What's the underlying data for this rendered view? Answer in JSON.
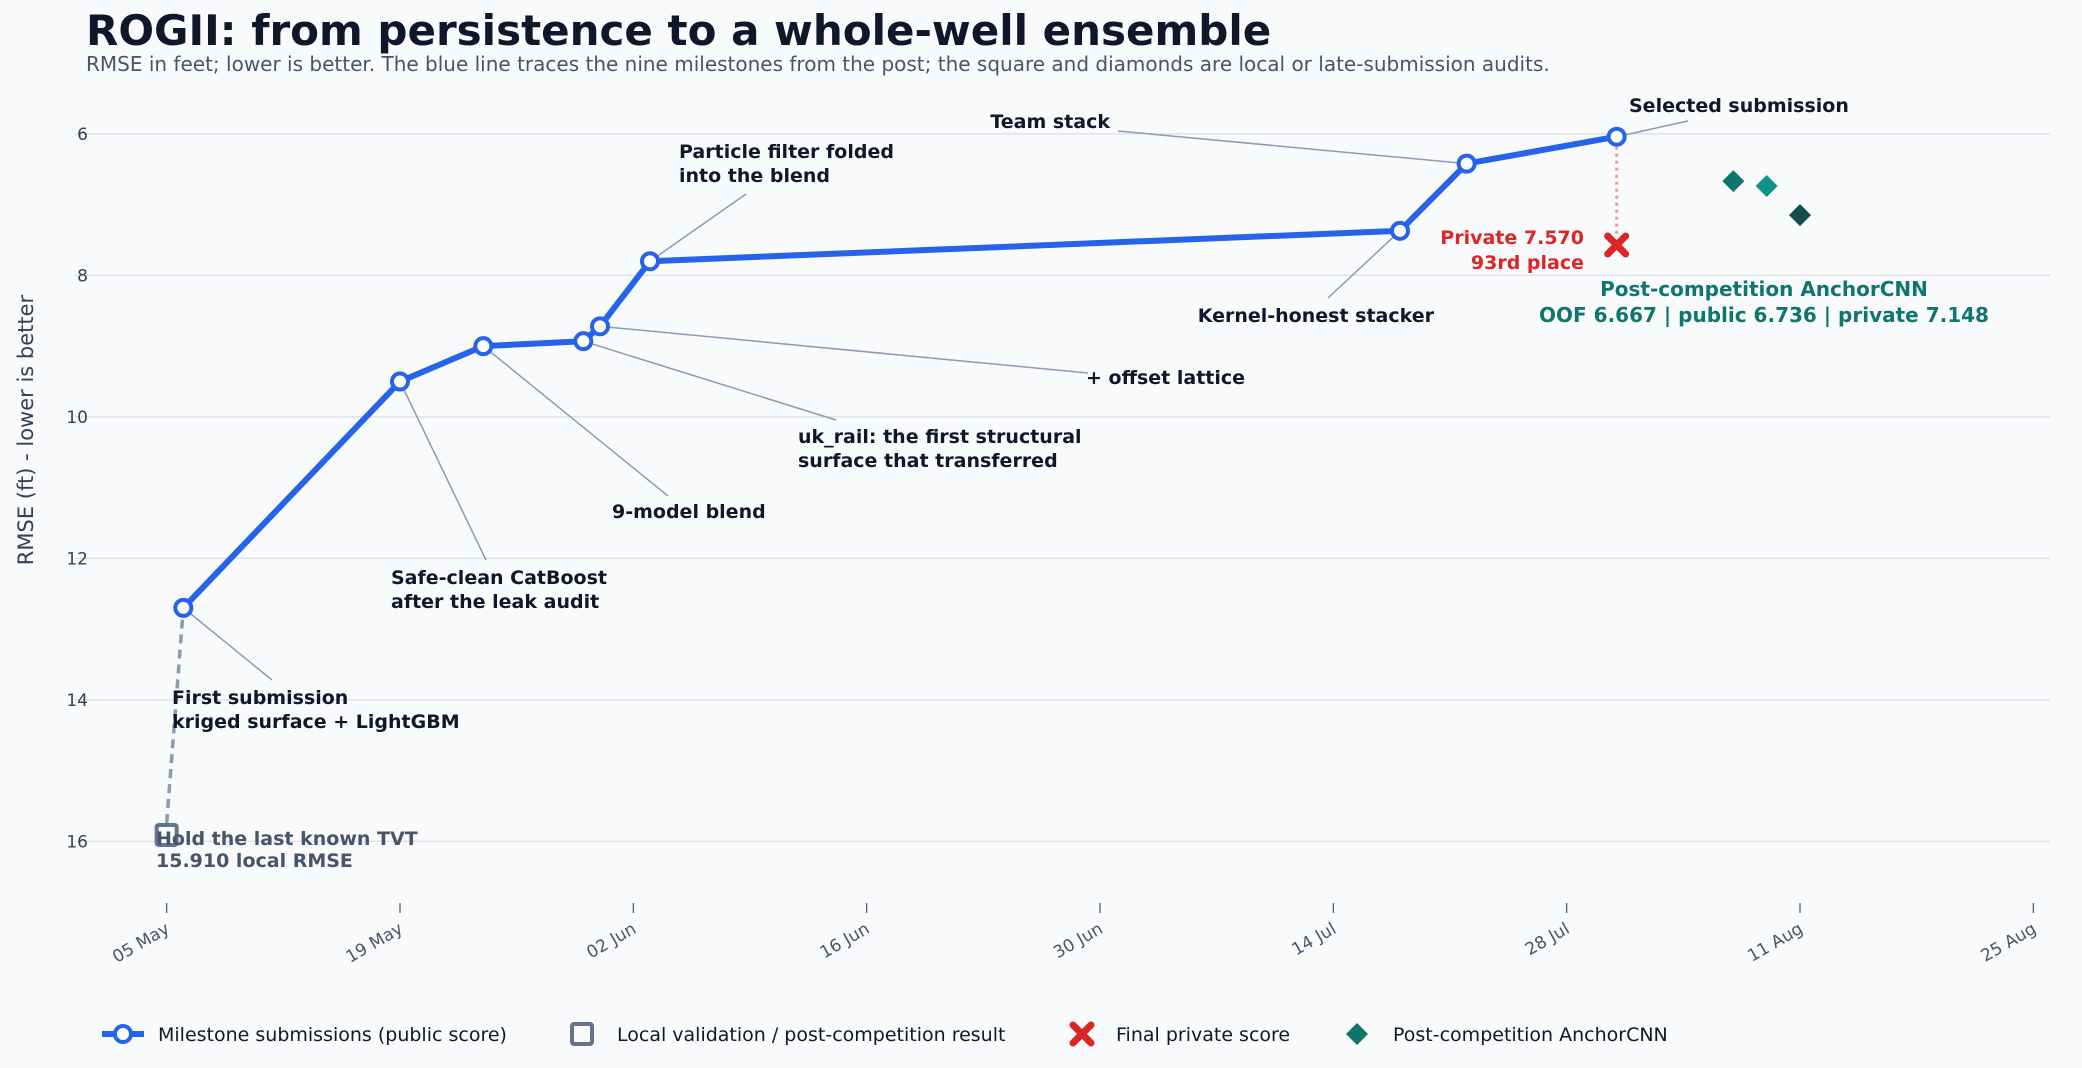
{
  "chart_data": {
    "type": "line",
    "title": "ROGII: from persistence to a whole-well ensemble",
    "subtitle": "RMSE in feet; lower is better. The blue line traces the nine milestones from the post; the square and diamonds are local or late-submission audits.",
    "xlabel": "",
    "ylabel": "RMSE (ft) - lower is better",
    "y_inverted": true,
    "ylim": [
      16.9,
      5.45
    ],
    "xlim": [
      "2025-05-01",
      "2025-08-26"
    ],
    "yticks": [
      6,
      8,
      10,
      12,
      14,
      16
    ],
    "xticks": [
      {
        "date": "2025-05-05",
        "label": "05 May"
      },
      {
        "date": "2025-05-19",
        "label": "19 May"
      },
      {
        "date": "2025-06-02",
        "label": "02 Jun"
      },
      {
        "date": "2025-06-16",
        "label": "16 Jun"
      },
      {
        "date": "2025-06-30",
        "label": "30 Jun"
      },
      {
        "date": "2025-07-14",
        "label": "14 Jul"
      },
      {
        "date": "2025-07-28",
        "label": "28 Jul"
      },
      {
        "date": "2025-08-11",
        "label": "11 Aug"
      },
      {
        "date": "2025-08-25",
        "label": "25 Aug"
      }
    ],
    "grid": "horizontal",
    "legend_position": "bottom",
    "colors": {
      "milestone": "#2563eb",
      "local": "#64748b",
      "private": "#dc2626",
      "anchor": "#0f766e",
      "anchor_public": "#0d9488",
      "anchor_private": "#134e4a",
      "grid": "#d9dee6",
      "leader": "#8c9bb2"
    },
    "series": [
      {
        "name": "Milestone submissions (public score)",
        "points": [
          {
            "x": "2025-05-06",
            "y": 12.7,
            "label": [
              "First submission",
              "kriged surface + LightGBM"
            ]
          },
          {
            "x": "2025-05-19",
            "y": 9.5,
            "label": [
              "Safe-clean CatBoost",
              "after the leak audit"
            ]
          },
          {
            "x": "2025-05-24",
            "y": 9.0,
            "label": [
              "9-model blend"
            ]
          },
          {
            "x": "2025-05-30",
            "y": 8.93,
            "label": [
              "uk_rail: the first structural",
              "surface that transferred"
            ]
          },
          {
            "x": "2025-05-31",
            "y": 8.72,
            "label": [
              "+ offset lattice"
            ]
          },
          {
            "x": "2025-06-03",
            "y": 7.8,
            "label": [
              "Particle filter folded",
              "into the blend"
            ]
          },
          {
            "x": "2025-07-18",
            "y": 7.37,
            "label": [
              "Kernel-honest stacker"
            ]
          },
          {
            "x": "2025-07-22",
            "y": 6.42,
            "label": [
              "Team stack"
            ]
          },
          {
            "x": "2025-07-31",
            "y": 6.04,
            "label": [
              "Selected submission"
            ]
          }
        ]
      },
      {
        "name": "Local validation / post-competition result",
        "points": [
          {
            "x": "2025-05-05",
            "y": 15.91,
            "label": [
              "Hold the last known TVT",
              "15.910 local RMSE"
            ]
          }
        ]
      },
      {
        "name": "Final private score",
        "points": [
          {
            "x": "2025-07-31",
            "y": 7.57,
            "label": [
              "Private 7.570",
              "93rd place"
            ]
          }
        ]
      },
      {
        "name": "Post-competition AnchorCNN",
        "points": [
          {
            "x": "2025-08-07",
            "y": 6.667,
            "metric": "OOF"
          },
          {
            "x": "2025-08-09",
            "y": 6.736,
            "metric": "public"
          },
          {
            "x": "2025-08-11",
            "y": 7.148,
            "metric": "private"
          }
        ],
        "label": [
          "Post-competition AnchorCNN",
          "OOF 6.667 | public 6.736 | private 7.148"
        ]
      }
    ]
  }
}
